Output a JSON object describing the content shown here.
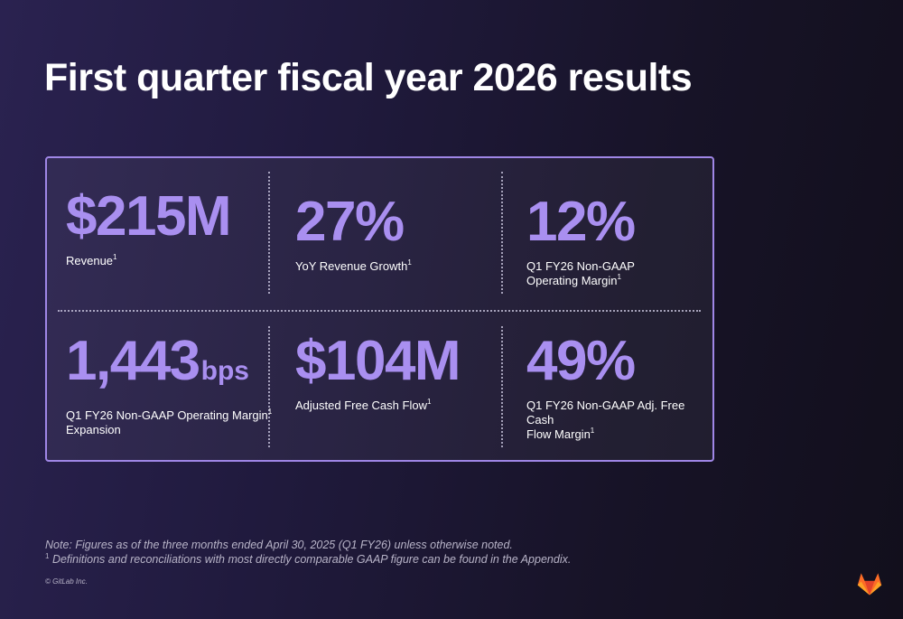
{
  "title": "First quarter fiscal year 2026 results",
  "colors": {
    "accent": "#a98ff0",
    "panel_border": "#9f86e6",
    "background_start": "#2a2250",
    "background_end": "#120f1c"
  },
  "metrics": [
    {
      "value": "$215M",
      "unit": "",
      "label": "Revenue",
      "label_sup": "1",
      "label_line2": "",
      "label_line2_sup": ""
    },
    {
      "value": "27%",
      "unit": "",
      "label": "YoY Revenue Growth",
      "label_sup": "1",
      "label_line2": "",
      "label_line2_sup": ""
    },
    {
      "value": "12%",
      "unit": "",
      "label": "Q1 FY26 Non-GAAP",
      "label_sup": "",
      "label_line2": "Operating Margin",
      "label_line2_sup": "1"
    },
    {
      "value": "1,443",
      "unit": "bps",
      "label": "Q1 FY26 Non-GAAP Operating Margin",
      "label_sup": "1",
      "label_line2": "Expansion",
      "label_line2_sup": ""
    },
    {
      "value": "$104M",
      "unit": "",
      "label": "Adjusted Free Cash Flow",
      "label_sup": "1",
      "label_line2": "",
      "label_line2_sup": ""
    },
    {
      "value": "49%",
      "unit": "",
      "label": "Q1 FY26 Non-GAAP Adj. Free Cash",
      "label_sup": "",
      "label_line2": "Flow Margin",
      "label_line2_sup": "1"
    }
  ],
  "footnotes": {
    "note": "Note:  Figures as of the three months ended April 30, 2025 (Q1 FY26) unless otherwise noted.",
    "definition_marker": "1",
    "definition": "Definitions and reconciliations with most directly comparable GAAP figure can be found in the Appendix."
  },
  "copyright": "© GitLab Inc.",
  "logo_icon": "gitlab-tanuki-icon"
}
